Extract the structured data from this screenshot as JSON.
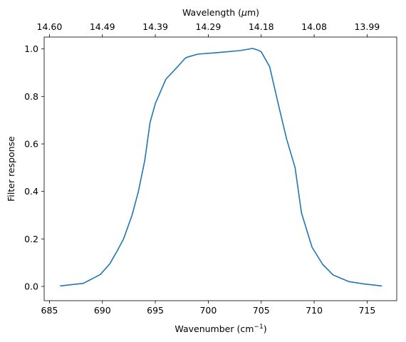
{
  "chart_data": {
    "type": "line",
    "xlabel": "Wavenumber",
    "xlabel_unit_base": "(cm",
    "xlabel_unit_sup": "−1",
    "xlabel_unit_close": ")",
    "ylabel": "Filter response",
    "top_xlabel_prefix": "Wavelength (",
    "top_xlabel_mu": "μ",
    "top_xlabel_suffix": "m)",
    "xlim": [
      684.5,
      717.8
    ],
    "ylim": [
      -0.06,
      1.05
    ],
    "xticks": [
      685,
      690,
      695,
      700,
      705,
      710,
      715
    ],
    "yticks": [
      0.0,
      0.2,
      0.4,
      0.6,
      0.8,
      1.0
    ],
    "ytick_labels": [
      "0.0",
      "0.2",
      "0.4",
      "0.6",
      "0.8",
      "1.0"
    ],
    "top_xticks": [
      "14.60",
      "14.49",
      "14.39",
      "14.29",
      "14.18",
      "14.08",
      "13.99"
    ],
    "grid": false,
    "line_color": "#1f77b4",
    "series": [
      {
        "x": [
          686.0,
          688.2,
          689.8,
          690.7,
          691.4,
          692.0,
          692.8,
          693.4,
          694.0,
          694.5,
          695.0,
          696.0,
          697.0,
          697.8,
          698.0,
          699.0,
          701.0,
          703.0,
          704.2,
          704.7,
          705.0,
          705.8,
          706.6,
          707.4,
          708.2,
          708.8,
          709.8,
          710.8,
          711.8,
          713.3,
          714.8,
          716.4
        ],
        "y": [
          0.002,
          0.013,
          0.05,
          0.095,
          0.15,
          0.2,
          0.3,
          0.4,
          0.53,
          0.69,
          0.77,
          0.873,
          0.92,
          0.96,
          0.965,
          0.978,
          0.985,
          0.993,
          1.002,
          0.995,
          0.988,
          0.925,
          0.77,
          0.62,
          0.5,
          0.31,
          0.165,
          0.093,
          0.048,
          0.02,
          0.01,
          0.002
        ]
      }
    ]
  }
}
